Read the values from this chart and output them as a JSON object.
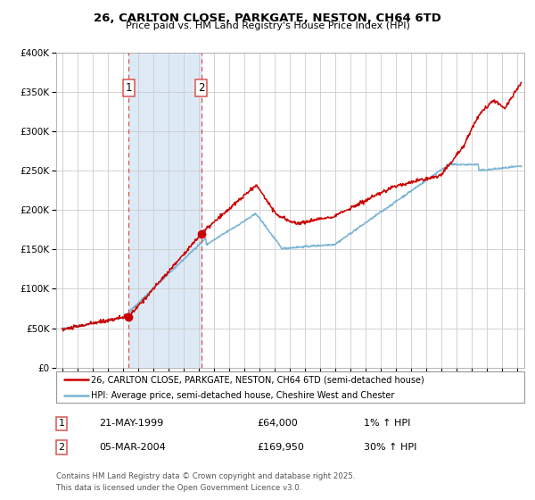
{
  "title1": "26, CARLTON CLOSE, PARKGATE, NESTON, CH64 6TD",
  "title2": "Price paid vs. HM Land Registry's House Price Index (HPI)",
  "ylim": [
    0,
    400000
  ],
  "yticks": [
    0,
    50000,
    100000,
    150000,
    200000,
    250000,
    300000,
    350000,
    400000
  ],
  "ytick_labels": [
    "£0",
    "£50K",
    "£100K",
    "£150K",
    "£200K",
    "£250K",
    "£300K",
    "£350K",
    "£400K"
  ],
  "xlim_start": 1994.6,
  "xlim_end": 2025.5,
  "xticks": [
    1995,
    1996,
    1997,
    1998,
    1999,
    2000,
    2001,
    2002,
    2003,
    2004,
    2005,
    2006,
    2007,
    2008,
    2009,
    2010,
    2011,
    2012,
    2013,
    2014,
    2015,
    2016,
    2017,
    2018,
    2019,
    2020,
    2021,
    2022,
    2023,
    2024,
    2025
  ],
  "marker1_x": 1999.38,
  "marker1_y": 64000,
  "marker2_x": 2004.17,
  "marker2_y": 169950,
  "marker1_date": "21-MAY-1999",
  "marker1_price": "£64,000",
  "marker1_hpi": "1% ↑ HPI",
  "marker2_date": "05-MAR-2004",
  "marker2_price": "£169,950",
  "marker2_hpi": "30% ↑ HPI",
  "vline_color": "#d9534f",
  "shade_color": "#ddeaf6",
  "red_line_color": "#cc0000",
  "blue_line_color": "#7ab3d4",
  "legend1_label": "26, CARLTON CLOSE, PARKGATE, NESTON, CH64 6TD (semi-detached house)",
  "legend2_label": "HPI: Average price, semi-detached house, Cheshire West and Chester",
  "footer": "Contains HM Land Registry data © Crown copyright and database right 2025.\nThis data is licensed under the Open Government Licence v3.0.",
  "grid_color": "#cccccc",
  "box_color": "#d9534f"
}
